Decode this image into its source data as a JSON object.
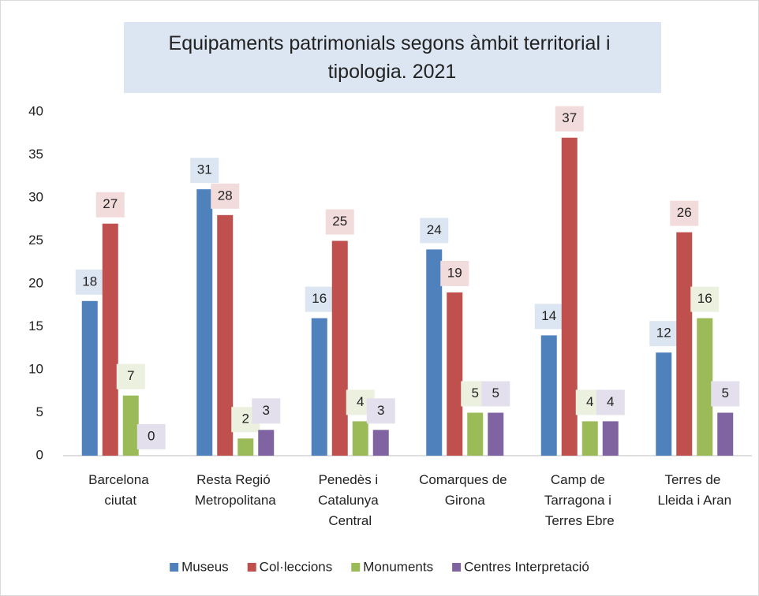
{
  "chart_data": {
    "type": "bar",
    "title": "Equipaments patrimonials segons àmbit territorial i tipologia. 2021",
    "categories": [
      "Barcelona ciutat",
      "Resta Regió Metropolitana",
      "Penedès i Catalunya Central",
      "Comarques de Girona",
      "Camp de Tarragona i Terres Ebre",
      "Terres de Lleida i Aran"
    ],
    "series": [
      {
        "name": "Museus",
        "color": "#4f81bd",
        "values": [
          18,
          31,
          16,
          24,
          14,
          12
        ]
      },
      {
        "name": "Col·leccions",
        "color": "#c0504d",
        "values": [
          27,
          28,
          25,
          19,
          37,
          26
        ]
      },
      {
        "name": "Monuments",
        "color": "#9bbb59",
        "values": [
          7,
          2,
          4,
          5,
          4,
          16
        ]
      },
      {
        "name": "Centres Interpretació",
        "color": "#8064a2",
        "values": [
          0,
          3,
          3,
          5,
          4,
          5
        ]
      }
    ],
    "ylim": [
      0,
      40
    ],
    "yticks": [
      0,
      5,
      10,
      15,
      20,
      25,
      30,
      35,
      40
    ],
    "grid": false,
    "legend": "bottom"
  }
}
